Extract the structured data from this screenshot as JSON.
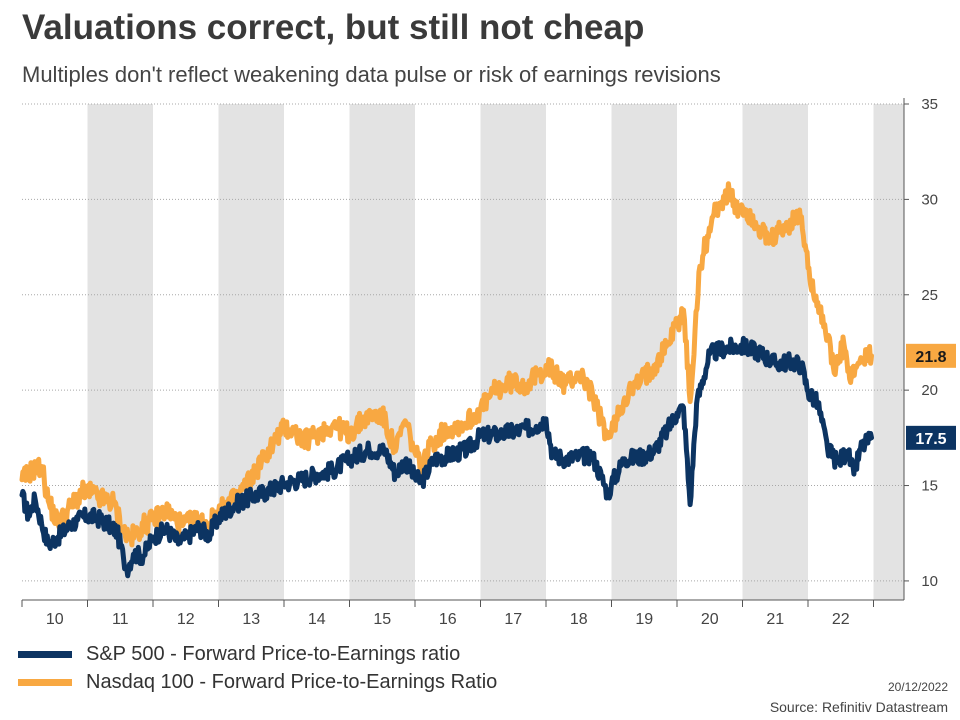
{
  "header": {
    "title": "Valuations correct, but still not cheap",
    "subtitle": "Multiples don't reflect weakening data pulse or risk of earnings revisions"
  },
  "chart_data": {
    "type": "line",
    "xlabel": "",
    "ylabel": "",
    "x_range": [
      2010,
      2022.97
    ],
    "ylim": [
      9,
      35
    ],
    "y_ticks": [
      10,
      15,
      20,
      25,
      30,
      35
    ],
    "x_tick_labels": [
      "10",
      "11",
      "12",
      "13",
      "14",
      "15",
      "16",
      "17",
      "18",
      "19",
      "20",
      "21",
      "22"
    ],
    "shaded_year_bands": [
      "11",
      "13",
      "15",
      "17",
      "19",
      "21",
      "23"
    ],
    "grid": "horizontal dotted",
    "series": [
      {
        "name": "S&P 500 - Forward Price-to-Earnings ratio",
        "color": "#0c3462",
        "last_value_label": "17.5",
        "points": [
          [
            2010.0,
            14.5
          ],
          [
            2010.1,
            13.4
          ],
          [
            2010.2,
            14.3
          ],
          [
            2010.3,
            13.0
          ],
          [
            2010.4,
            11.9
          ],
          [
            2010.55,
            12.3
          ],
          [
            2010.7,
            12.8
          ],
          [
            2010.85,
            13.2
          ],
          [
            2011.0,
            13.4
          ],
          [
            2011.15,
            13.3
          ],
          [
            2011.3,
            13.0
          ],
          [
            2011.45,
            12.6
          ],
          [
            2011.55,
            11.2
          ],
          [
            2011.6,
            10.6
          ],
          [
            2011.7,
            11.4
          ],
          [
            2011.85,
            11.3
          ],
          [
            2012.0,
            12.3
          ],
          [
            2012.2,
            12.7
          ],
          [
            2012.4,
            12.0
          ],
          [
            2012.55,
            12.4
          ],
          [
            2012.7,
            12.8
          ],
          [
            2012.85,
            12.4
          ],
          [
            2013.0,
            13.3
          ],
          [
            2013.25,
            14.0
          ],
          [
            2013.5,
            14.4
          ],
          [
            2013.75,
            14.7
          ],
          [
            2014.0,
            15.1
          ],
          [
            2014.25,
            15.3
          ],
          [
            2014.5,
            15.6
          ],
          [
            2014.75,
            15.8
          ],
          [
            2015.0,
            16.4
          ],
          [
            2015.3,
            16.9
          ],
          [
            2015.55,
            16.8
          ],
          [
            2015.7,
            15.6
          ],
          [
            2015.85,
            16.3
          ],
          [
            2016.0,
            15.4
          ],
          [
            2016.1,
            15.2
          ],
          [
            2016.3,
            16.4
          ],
          [
            2016.55,
            16.6
          ],
          [
            2016.8,
            16.9
          ],
          [
            2017.0,
            17.6
          ],
          [
            2017.3,
            17.7
          ],
          [
            2017.6,
            17.9
          ],
          [
            2017.85,
            18.1
          ],
          [
            2018.0,
            18.5
          ],
          [
            2018.1,
            16.6
          ],
          [
            2018.3,
            16.4
          ],
          [
            2018.5,
            16.5
          ],
          [
            2018.7,
            16.6
          ],
          [
            2018.85,
            15.4
          ],
          [
            2018.95,
            14.5
          ],
          [
            2019.0,
            15.1
          ],
          [
            2019.2,
            16.4
          ],
          [
            2019.45,
            16.5
          ],
          [
            2019.65,
            16.8
          ],
          [
            2019.85,
            17.9
          ],
          [
            2020.0,
            18.8
          ],
          [
            2020.1,
            19.1
          ],
          [
            2020.2,
            14.0
          ],
          [
            2020.3,
            19.3
          ],
          [
            2020.5,
            21.9
          ],
          [
            2020.75,
            22.2
          ],
          [
            2021.0,
            22.3
          ],
          [
            2021.25,
            22.0
          ],
          [
            2021.5,
            21.4
          ],
          [
            2021.75,
            21.5
          ],
          [
            2021.9,
            21.3
          ],
          [
            2022.0,
            19.9
          ],
          [
            2022.15,
            19.3
          ],
          [
            2022.3,
            16.9
          ],
          [
            2022.45,
            16.2
          ],
          [
            2022.6,
            16.8
          ],
          [
            2022.7,
            15.6
          ],
          [
            2022.8,
            16.9
          ],
          [
            2022.9,
            17.3
          ],
          [
            2022.97,
            17.5
          ]
        ]
      },
      {
        "name": "Nasdaq 100 - Forward Price-to-Earnings Ratio",
        "color": "#f8a842",
        "last_value_label": "21.8",
        "points": [
          [
            2010.0,
            15.3
          ],
          [
            2010.15,
            15.8
          ],
          [
            2010.3,
            16.0
          ],
          [
            2010.4,
            14.2
          ],
          [
            2010.55,
            13.0
          ],
          [
            2010.75,
            13.9
          ],
          [
            2010.9,
            14.6
          ],
          [
            2011.0,
            14.7
          ],
          [
            2011.2,
            14.3
          ],
          [
            2011.4,
            14.1
          ],
          [
            2011.55,
            12.6
          ],
          [
            2011.65,
            12.2
          ],
          [
            2011.85,
            12.9
          ],
          [
            2012.0,
            13.2
          ],
          [
            2012.2,
            13.7
          ],
          [
            2012.45,
            12.9
          ],
          [
            2012.65,
            13.2
          ],
          [
            2012.85,
            13.0
          ],
          [
            2013.0,
            13.6
          ],
          [
            2013.3,
            14.5
          ],
          [
            2013.5,
            15.4
          ],
          [
            2013.7,
            16.5
          ],
          [
            2013.85,
            17.3
          ],
          [
            2014.0,
            18.0
          ],
          [
            2014.15,
            17.9
          ],
          [
            2014.3,
            17.3
          ],
          [
            2014.5,
            17.7
          ],
          [
            2014.75,
            18.2
          ],
          [
            2015.0,
            17.7
          ],
          [
            2015.25,
            18.6
          ],
          [
            2015.5,
            18.7
          ],
          [
            2015.7,
            16.8
          ],
          [
            2015.85,
            18.4
          ],
          [
            2016.0,
            16.7
          ],
          [
            2016.1,
            15.9
          ],
          [
            2016.25,
            17.2
          ],
          [
            2016.5,
            18.0
          ],
          [
            2016.75,
            18.2
          ],
          [
            2017.0,
            19.0
          ],
          [
            2017.2,
            19.9
          ],
          [
            2017.45,
            20.4
          ],
          [
            2017.7,
            20.3
          ],
          [
            2017.9,
            20.8
          ],
          [
            2018.0,
            21.3
          ],
          [
            2018.15,
            20.8
          ],
          [
            2018.3,
            20.3
          ],
          [
            2018.5,
            20.9
          ],
          [
            2018.65,
            20.2
          ],
          [
            2018.8,
            18.8
          ],
          [
            2018.95,
            17.5
          ],
          [
            2019.0,
            17.8
          ],
          [
            2019.2,
            19.6
          ],
          [
            2019.45,
            20.5
          ],
          [
            2019.65,
            21.3
          ],
          [
            2019.85,
            22.4
          ],
          [
            2020.0,
            23.5
          ],
          [
            2020.1,
            24.2
          ],
          [
            2020.2,
            19.4
          ],
          [
            2020.35,
            26.5
          ],
          [
            2020.55,
            29.1
          ],
          [
            2020.65,
            29.8
          ],
          [
            2020.8,
            30.4
          ],
          [
            2020.9,
            29.3
          ],
          [
            2021.0,
            29.6
          ],
          [
            2021.2,
            28.8
          ],
          [
            2021.4,
            27.7
          ],
          [
            2021.6,
            28.4
          ],
          [
            2021.8,
            28.9
          ],
          [
            2021.9,
            29.1
          ],
          [
            2022.0,
            26.4
          ],
          [
            2022.15,
            24.6
          ],
          [
            2022.3,
            22.8
          ],
          [
            2022.4,
            20.9
          ],
          [
            2022.55,
            22.4
          ],
          [
            2022.65,
            20.4
          ],
          [
            2022.75,
            21.3
          ],
          [
            2022.85,
            21.6
          ],
          [
            2022.97,
            21.8
          ]
        ]
      }
    ]
  },
  "legend": {
    "items": [
      {
        "label": "S&P 500 - Forward Price-to-Earnings ratio",
        "color": "#0c3462"
      },
      {
        "label": "Nasdaq 100 - Forward Price-to-Earnings Ratio",
        "color": "#f8a842"
      }
    ]
  },
  "footer": {
    "date": "20/12/2022",
    "source": "Source: Refinitiv Datastream"
  }
}
